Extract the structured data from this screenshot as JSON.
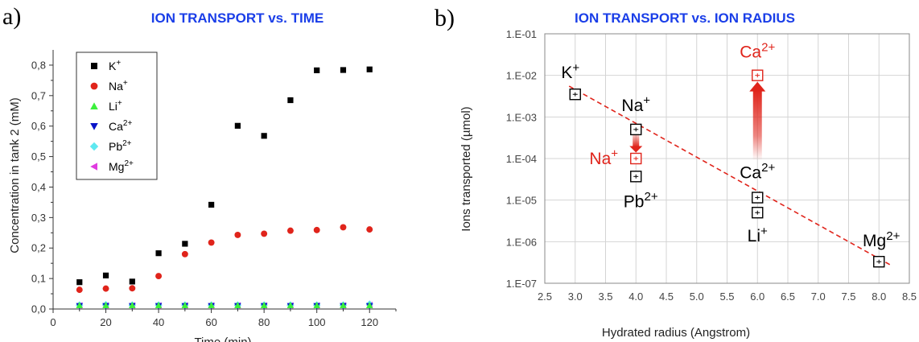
{
  "panel_a": {
    "letter": "a)",
    "superscript_note": "",
    "title": "ION TRANSPORT vs.  TIME"
  },
  "panel_b": {
    "letter": "b)",
    "title": "ION TRANSPORT vs. ION RADIUS"
  },
  "colors": {
    "title": "#1a3ee8",
    "highlight": "#e0241b",
    "black": "#000000"
  },
  "chart_data": [
    {
      "type": "scatter",
      "title": "ION TRANSPORT vs.  TIME",
      "xlabel": "Time (min)",
      "ylabel": "Concentration in tank 2 (mM)",
      "xlim": [
        0,
        130
      ],
      "ylim": [
        0,
        0.85
      ],
      "xticks": [
        0,
        20,
        40,
        60,
        80,
        100,
        120
      ],
      "xtick_labels": [
        "0",
        "20",
        "40",
        "60",
        "80",
        "100",
        "120"
      ],
      "yticks": [
        0,
        0.1,
        0.2,
        0.3,
        0.4,
        0.5,
        0.6,
        0.7,
        0.8
      ],
      "ytick_labels": [
        "0,0",
        "0,1",
        "0,2",
        "0,3",
        "0,4",
        "0,5",
        "0,6",
        "0,7",
        "0,8"
      ],
      "legend_position": "top-left",
      "series": [
        {
          "name": "K",
          "sup": "+",
          "marker": "square",
          "color": "#000000",
          "x": [
            10,
            20,
            30,
            40,
            50,
            60,
            70,
            80,
            90,
            100,
            110,
            120
          ],
          "y": [
            0.088,
            0.11,
            0.09,
            0.183,
            0.214,
            0.342,
            0.601,
            0.568,
            0.685,
            0.783,
            0.784,
            0.786
          ]
        },
        {
          "name": "Na",
          "sup": "+",
          "marker": "circle",
          "color": "#e0241b",
          "x": [
            10,
            20,
            30,
            40,
            50,
            60,
            70,
            80,
            90,
            100,
            110,
            120
          ],
          "y": [
            0.063,
            0.067,
            0.068,
            0.108,
            0.18,
            0.218,
            0.243,
            0.247,
            0.257,
            0.259,
            0.268,
            0.261
          ]
        },
        {
          "name": "Li",
          "sup": "+",
          "marker": "triangle-up",
          "color": "#3cf03c",
          "x": [
            10,
            20,
            30,
            40,
            50,
            60,
            70,
            80,
            90,
            100,
            110,
            120
          ],
          "y": [
            0.012,
            0.012,
            0.012,
            0.012,
            0.012,
            0.012,
            0.012,
            0.012,
            0.012,
            0.012,
            0.012,
            0.012
          ]
        },
        {
          "name": "Ca",
          "sup": "2+",
          "marker": "triangle-down",
          "color": "#0a14c8",
          "x": [
            10,
            20,
            30,
            40,
            50,
            60,
            70,
            80,
            90,
            100,
            110,
            120
          ],
          "y": [
            0.01,
            0.01,
            0.01,
            0.01,
            0.01,
            0.01,
            0.01,
            0.01,
            0.01,
            0.01,
            0.01,
            0.01
          ]
        },
        {
          "name": "Pb",
          "sup": "2+",
          "marker": "diamond",
          "color": "#5ee8f0",
          "x": [
            10,
            20,
            30,
            40,
            50,
            60,
            70,
            80,
            90,
            100,
            110,
            120
          ],
          "y": [
            0.013,
            0.014,
            0.013,
            0.013,
            0.013,
            0.013,
            0.013,
            0.013,
            0.013,
            0.013,
            0.013,
            0.016
          ]
        },
        {
          "name": "Mg",
          "sup": "2+",
          "marker": "triangle-left",
          "color": "#e03ce0",
          "x": [
            10,
            20,
            30,
            40,
            50,
            60,
            70,
            80,
            90,
            100,
            110,
            120
          ],
          "y": [
            0.011,
            0.011,
            0.011,
            0.011,
            0.011,
            0.011,
            0.011,
            0.011,
            0.011,
            0.011,
            0.011,
            0.013
          ]
        }
      ]
    },
    {
      "type": "scatter",
      "title": "ION TRANSPORT vs. ION RADIUS",
      "xlabel": "Hydrated radius (Angstrom)",
      "ylabel": "Ions transported (µmol)",
      "xlim": [
        2.5,
        8.5
      ],
      "ylim": [
        1e-07,
        0.1
      ],
      "yscale": "log",
      "grid": true,
      "xticks": [
        2.5,
        3.0,
        3.5,
        4.0,
        4.5,
        5.0,
        5.5,
        6.0,
        6.5,
        7.0,
        7.5,
        8.0,
        8.5
      ],
      "xtick_labels": [
        "2.5",
        "3.0",
        "3.5",
        "4.0",
        "4.5",
        "5.0",
        "5.5",
        "6.0",
        "6.5",
        "7.0",
        "7.5",
        "8.0",
        "8.5"
      ],
      "yticks": [
        1e-07,
        1e-06,
        1e-05,
        0.0001,
        0.001,
        0.01,
        0.1
      ],
      "ytick_labels": [
        "1.E-07",
        "1.E-06",
        "1.E-05",
        "1.E-04",
        "1.E-03",
        "1.E-02",
        "1.E-01"
      ],
      "points": [
        {
          "ion": "K",
          "sup": "+",
          "x": 3.0,
          "y": 0.0035,
          "color": "#000000"
        },
        {
          "ion": "Na",
          "sup": "+",
          "x": 4.0,
          "y": 0.0005,
          "color": "#000000"
        },
        {
          "ion": "Na",
          "sup": "+",
          "x": 4.0,
          "y": 0.0001,
          "color": "#e0241b"
        },
        {
          "ion": "Pb",
          "sup": "2+",
          "x": 4.0,
          "y": 3.7e-05,
          "color": "#000000"
        },
        {
          "ion": "Ca",
          "sup": "2+",
          "x": 6.0,
          "y": 0.01,
          "color": "#e0241b"
        },
        {
          "ion": "Ca",
          "sup": "2+",
          "x": 6.0,
          "y": 1.15e-05,
          "color": "#000000"
        },
        {
          "ion": "Li",
          "sup": "+",
          "x": 6.0,
          "y": 5e-06,
          "color": "#000000"
        },
        {
          "ion": "Mg",
          "sup": "2+",
          "x": 8.0,
          "y": 3.3e-07,
          "color": "#000000"
        }
      ],
      "trendline": {
        "style": "dashed",
        "color": "#e0241b",
        "x": [
          2.9,
          8.2
        ],
        "y": [
          0.0055,
          2.7e-07
        ]
      },
      "arrows": [
        {
          "color": "#e0241b",
          "x": 4.0,
          "from_y": 0.0004,
          "to_y": 0.00014
        },
        {
          "color": "#e0241b",
          "x": 6.0,
          "from_y": 9e-05,
          "to_y": 0.007
        }
      ]
    }
  ]
}
